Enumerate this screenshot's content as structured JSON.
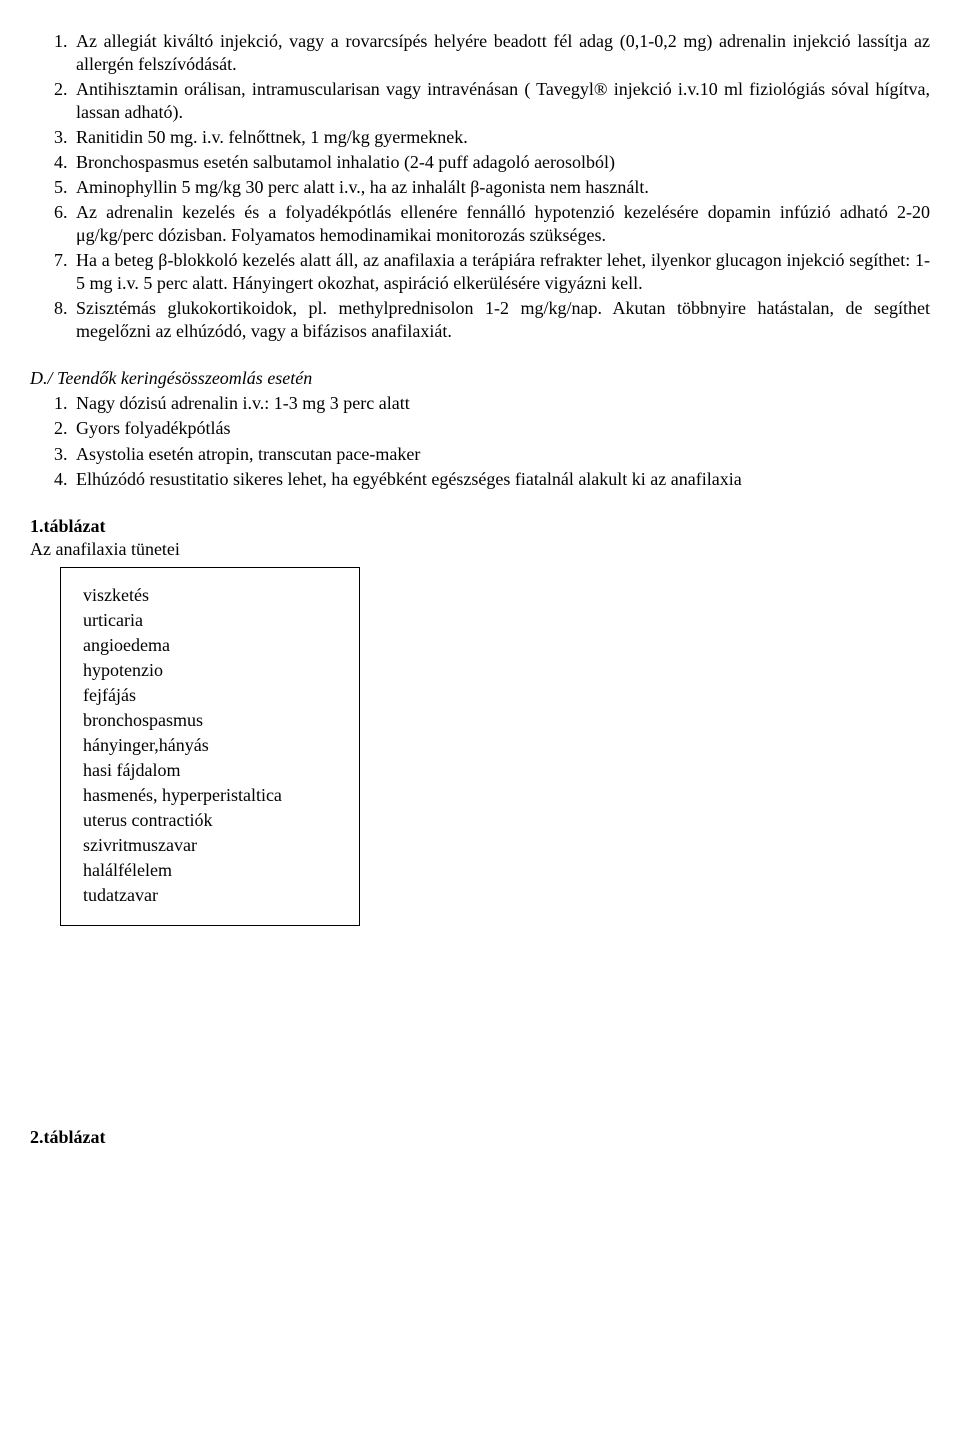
{
  "list1": {
    "i1": "Az allegiát kiváltó injekció, vagy a rovarcsípés helyére beadott fél adag (0,1-0,2 mg) adrenalin injekció lassítja az allergén felszívódását.",
    "i2": "Antihisztamin orálisan, intramuscularisan vagy intravénásan ( Tavegyl® injekció i.v.10 ml fiziológiás sóval hígítva, lassan adható).",
    "i3": "Ranitidin 50 mg. i.v. felnőttnek, 1 mg/kg gyermeknek.",
    "i4": "Bronchospasmus esetén salbutamol inhalatio (2-4 puff adagoló aerosolból)",
    "i5": "Aminophyllin 5 mg/kg 30 perc alatt i.v., ha az inhalált β-agonista nem használt.",
    "i6": "Az adrenalin kezelés és a folyadékpótlás ellenére fennálló hypotenzió kezelésére dopamin infúzió adható 2-20 μg/kg/perc dózisban. Folyamatos hemodinamikai monitorozás szükséges.",
    "i7": "Ha a beteg β-blokkoló kezelés alatt áll, az anafilaxia a terápiára refrakter lehet, ilyenkor glucagon injekció segíthet: 1-5 mg i.v. 5 perc alatt. Hányingert okozhat, aspiráció elkerülésére vigyázni kell.",
    "i8": "Szisztémás glukokortikoidok, pl. methylprednisolon 1-2 mg/kg/nap. Akutan többnyire hatástalan, de segíthet megelőzni az elhúzódó, vagy a bifázisos anafilaxiát."
  },
  "sectionD": {
    "title": "D./ Teendők keringésösszeomlás esetén",
    "i1": "Nagy dózisú adrenalin i.v.: 1-3 mg 3 perc alatt",
    "i2": "Gyors folyadékpótlás",
    "i3": "Asystolia esetén atropin, transcutan pace-maker",
    "i4": "Elhúzódó resustitatio sikeres lehet, ha egyébként egészséges fiatalnál alakult ki az anafilaxia"
  },
  "table1": {
    "label": "1.táblázat",
    "caption": "Az anafilaxia tünetei",
    "rows": {
      "r0": "viszketés",
      "r1": "urticaria",
      "r2": "angioedema",
      "r3": "hypotenzio",
      "r4": "fejfájás",
      "r5": "bronchospasmus",
      "r6": "hányinger,hányás",
      "r7": "hasi fájdalom",
      "r8": "hasmenés, hyperperistaltica",
      "r9": "uterus contractiók",
      "r10": "szivritmuszavar",
      "r11": "halálfélelem",
      "r12": "tudatzavar"
    }
  },
  "table2": {
    "label": "2.táblázat"
  }
}
